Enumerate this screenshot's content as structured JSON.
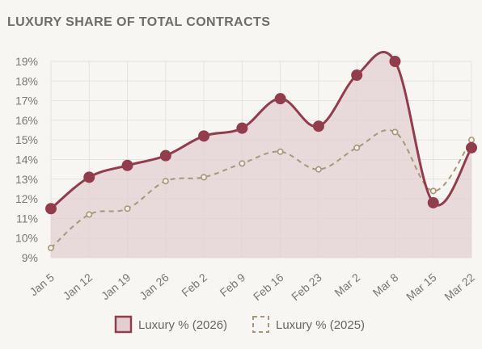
{
  "title": "LUXURY SHARE OF TOTAL CONTRACTS",
  "colors": {
    "series_2026": "#923d4c",
    "series_2026_fill": "#e3cfd2",
    "series_2025": "#a7977a",
    "grid": "#e6e2de",
    "background": "#f8f6f3"
  },
  "chart_data": {
    "type": "line",
    "x": [
      "Jan 5",
      "Jan 12",
      "Jan 19",
      "Jan 26",
      "Feb 2",
      "Feb 9",
      "Feb 16",
      "Feb 23",
      "Mar 2",
      "Mar 8",
      "Mar 15",
      "Mar 22"
    ],
    "ylim": [
      9,
      19
    ],
    "yticks": [
      "9%",
      "10%",
      "11%",
      "12%",
      "13%",
      "14%",
      "15%",
      "16%",
      "17%",
      "18%",
      "19%"
    ],
    "grid": true,
    "legend": "bottom",
    "series": [
      {
        "name": "Luxury % (2026)",
        "values": [
          11.5,
          13.1,
          13.7,
          14.2,
          15.2,
          15.6,
          17.1,
          15.7,
          18.3,
          19.0,
          11.8,
          14.6
        ],
        "style": "solid-filled"
      },
      {
        "name": "Luxury % (2025)",
        "values": [
          9.5,
          11.2,
          11.5,
          12.9,
          13.1,
          13.8,
          14.4,
          13.5,
          14.6,
          15.4,
          12.4,
          15.0
        ],
        "style": "dashed"
      }
    ]
  }
}
